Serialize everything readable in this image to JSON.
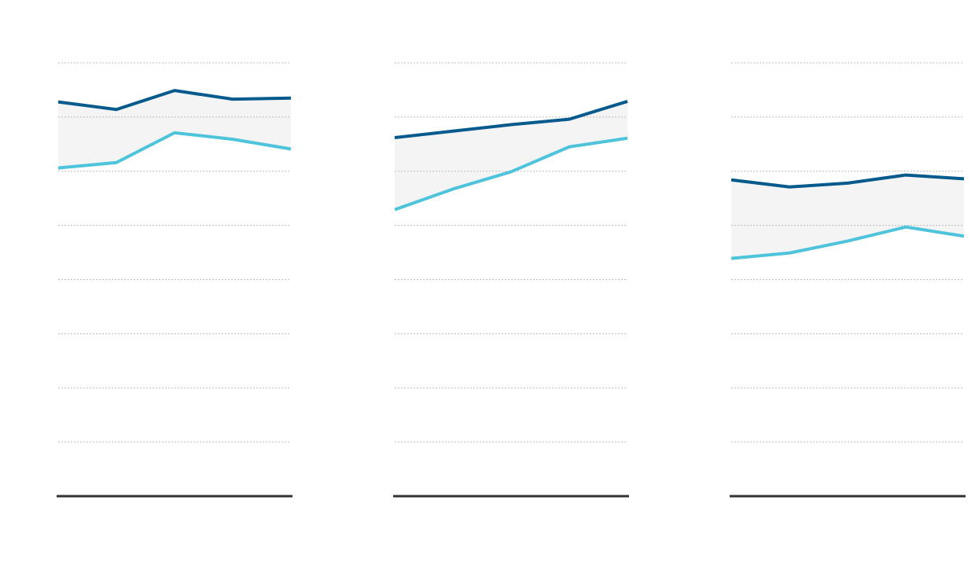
{
  "chart_data": [
    {
      "type": "line",
      "categories": [
        null,
        null,
        null,
        null,
        null
      ],
      "series": [
        {
          "color": "#045a8d",
          "values": [
            7.28,
            7.14,
            7.49,
            7.33,
            7.35
          ]
        },
        {
          "color": "#4ec3dc",
          "values": [
            6.06,
            6.16,
            6.71,
            6.59,
            6.41
          ]
        }
      ],
      "fill_between": "#f4f4f4",
      "ylim": [
        0,
        8
      ],
      "yticks": [
        0,
        1,
        2,
        3,
        4,
        5,
        6,
        7,
        8
      ],
      "grid": true
    },
    {
      "type": "line",
      "categories": [
        null,
        null,
        null,
        null,
        null
      ],
      "series": [
        {
          "color": "#045a8d",
          "values": [
            6.62,
            6.74,
            6.86,
            6.96,
            7.29
          ]
        },
        {
          "color": "#4ec3dc",
          "values": [
            5.29,
            5.67,
            5.99,
            6.45,
            6.61
          ]
        }
      ],
      "fill_between": "#f4f4f4",
      "ylim": [
        0,
        8
      ],
      "yticks": [
        0,
        1,
        2,
        3,
        4,
        5,
        6,
        7,
        8
      ],
      "grid": true
    },
    {
      "type": "line",
      "categories": [
        null,
        null,
        null,
        null,
        null
      ],
      "series": [
        {
          "color": "#045a8d",
          "values": [
            5.84,
            5.71,
            5.78,
            5.93,
            5.86
          ]
        },
        {
          "color": "#4ec3dc",
          "values": [
            4.39,
            4.49,
            4.71,
            4.97,
            4.8
          ]
        }
      ],
      "fill_between": "#f4f4f4",
      "ylim": [
        0,
        8
      ],
      "yticks": [
        0,
        1,
        2,
        3,
        4,
        5,
        6,
        7,
        8
      ],
      "grid": true
    }
  ]
}
